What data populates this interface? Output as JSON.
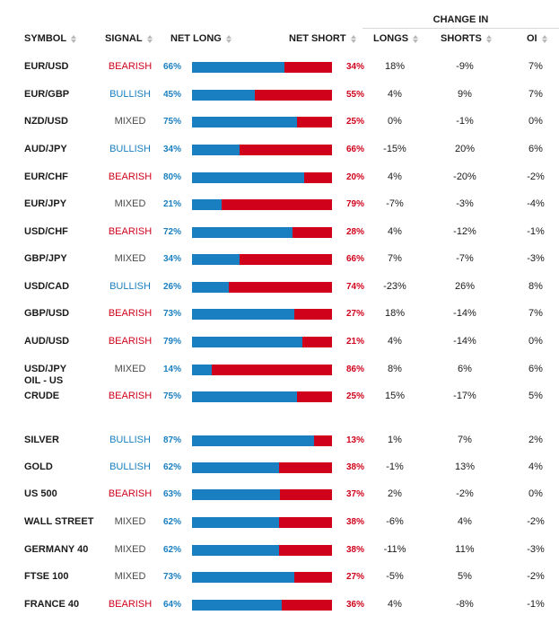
{
  "header": {
    "change_in": "CHANGE IN",
    "symbol": "SYMBOL",
    "signal": "SIGNAL",
    "net_long": "NET LONG",
    "net_short": "NET SHORT",
    "longs": "LONGS",
    "shorts": "SHORTS",
    "oi": "OI"
  },
  "colors": {
    "long": "#1a7fc0",
    "short": "#d0021b",
    "bearish": "#d0021b",
    "bullish": "#1a7fc0",
    "mixed": "#4a4a4a"
  },
  "rows": [
    {
      "symbol": "EUR/USD",
      "signal": "BEARISH",
      "net_long": "66%",
      "net_short": "34%",
      "long_fraction": 0.66,
      "longs": "18%",
      "shorts": "-9%",
      "oi": "7%"
    },
    {
      "symbol": "EUR/GBP",
      "signal": "BULLISH",
      "net_long": "45%",
      "net_short": "55%",
      "long_fraction": 0.45,
      "longs": "4%",
      "shorts": "9%",
      "oi": "7%"
    },
    {
      "symbol": "NZD/USD",
      "signal": "MIXED",
      "net_long": "75%",
      "net_short": "25%",
      "long_fraction": 0.75,
      "longs": "0%",
      "shorts": "-1%",
      "oi": "0%"
    },
    {
      "symbol": "AUD/JPY",
      "signal": "BULLISH",
      "net_long": "34%",
      "net_short": "66%",
      "long_fraction": 0.34,
      "longs": "-15%",
      "shorts": "20%",
      "oi": "6%"
    },
    {
      "symbol": "EUR/CHF",
      "signal": "BEARISH",
      "net_long": "80%",
      "net_short": "20%",
      "long_fraction": 0.8,
      "longs": "4%",
      "shorts": "-20%",
      "oi": "-2%"
    },
    {
      "symbol": "EUR/JPY",
      "signal": "MIXED",
      "net_long": "21%",
      "net_short": "79%",
      "long_fraction": 0.21,
      "longs": "-7%",
      "shorts": "-3%",
      "oi": "-4%"
    },
    {
      "symbol": "USD/CHF",
      "signal": "BEARISH",
      "net_long": "72%",
      "net_short": "28%",
      "long_fraction": 0.72,
      "longs": "4%",
      "shorts": "-12%",
      "oi": "-1%"
    },
    {
      "symbol": "GBP/JPY",
      "signal": "MIXED",
      "net_long": "34%",
      "net_short": "66%",
      "long_fraction": 0.34,
      "longs": "7%",
      "shorts": "-7%",
      "oi": "-3%"
    },
    {
      "symbol": "USD/CAD",
      "signal": "BULLISH",
      "net_long": "26%",
      "net_short": "74%",
      "long_fraction": 0.26,
      "longs": "-23%",
      "shorts": "26%",
      "oi": "8%"
    },
    {
      "symbol": "GBP/USD",
      "signal": "BEARISH",
      "net_long": "73%",
      "net_short": "27%",
      "long_fraction": 0.73,
      "longs": "18%",
      "shorts": "-14%",
      "oi": "7%"
    },
    {
      "symbol": "AUD/USD",
      "signal": "BEARISH",
      "net_long": "79%",
      "net_short": "21%",
      "long_fraction": 0.79,
      "longs": "4%",
      "shorts": "-14%",
      "oi": "0%"
    },
    {
      "symbol": "USD/JPY",
      "signal": "MIXED",
      "net_long": "14%",
      "net_short": "86%",
      "long_fraction": 0.14,
      "longs": "8%",
      "shorts": "6%",
      "oi": "6%"
    },
    {
      "symbol": "OIL - US CRUDE",
      "signal": "BEARISH",
      "net_long": "75%",
      "net_short": "25%",
      "long_fraction": 0.75,
      "longs": "15%",
      "shorts": "-17%",
      "oi": "5%"
    },
    {
      "symbol": "SILVER",
      "signal": "BULLISH",
      "net_long": "87%",
      "net_short": "13%",
      "long_fraction": 0.87,
      "longs": "1%",
      "shorts": "7%",
      "oi": "2%"
    },
    {
      "symbol": "GOLD",
      "signal": "BULLISH",
      "net_long": "62%",
      "net_short": "38%",
      "long_fraction": 0.62,
      "longs": "-1%",
      "shorts": "13%",
      "oi": "4%"
    },
    {
      "symbol": "US 500",
      "signal": "BEARISH",
      "net_long": "63%",
      "net_short": "37%",
      "long_fraction": 0.63,
      "longs": "2%",
      "shorts": "-2%",
      "oi": "0%"
    },
    {
      "symbol": "WALL STREET",
      "signal": "MIXED",
      "net_long": "62%",
      "net_short": "38%",
      "long_fraction": 0.62,
      "longs": "-6%",
      "shorts": "4%",
      "oi": "-2%"
    },
    {
      "symbol": "GERMANY 40",
      "signal": "MIXED",
      "net_long": "62%",
      "net_short": "38%",
      "long_fraction": 0.62,
      "longs": "-11%",
      "shorts": "11%",
      "oi": "-3%"
    },
    {
      "symbol": "FTSE 100",
      "signal": "MIXED",
      "net_long": "73%",
      "net_short": "27%",
      "long_fraction": 0.73,
      "longs": "-5%",
      "shorts": "5%",
      "oi": "-2%"
    },
    {
      "symbol": "FRANCE 40",
      "signal": "BEARISH",
      "net_long": "64%",
      "net_short": "36%",
      "long_fraction": 0.64,
      "longs": "4%",
      "shorts": "-8%",
      "oi": "-1%"
    }
  ]
}
